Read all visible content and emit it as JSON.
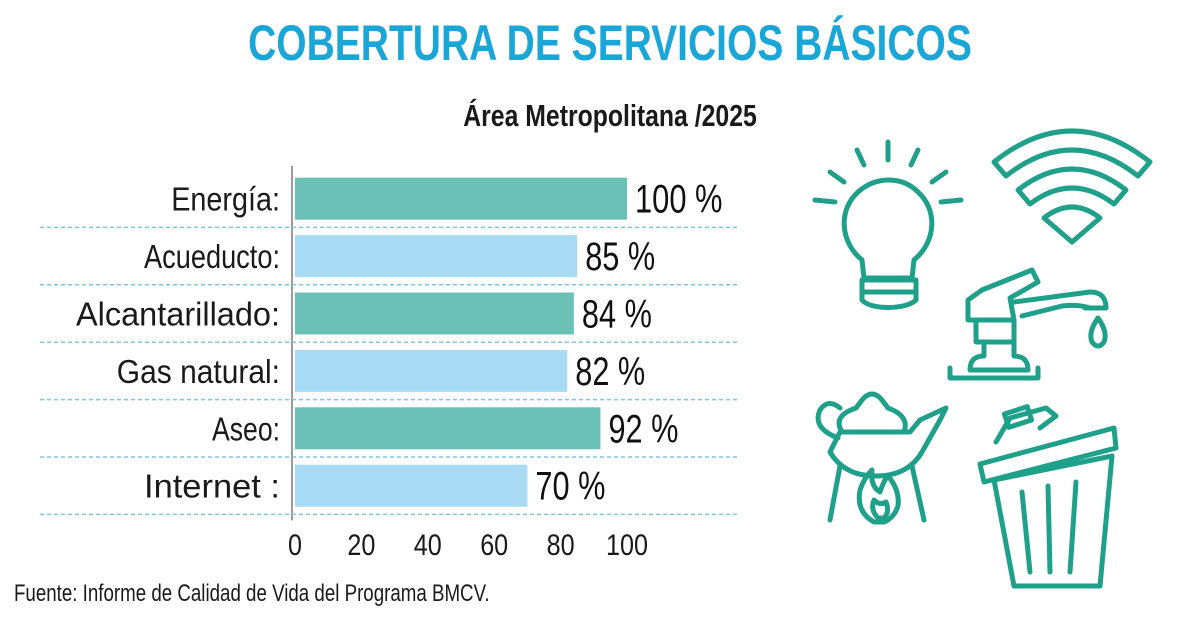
{
  "header": {
    "title": "COBERTURA DE SERVICIOS BÁSICOS",
    "subtitle": "Área Metropolitana /2025"
  },
  "footer": {
    "source": "Fuente: Informe de Calidad de Vida del  Programa BMCV."
  },
  "colors": {
    "title": "#1aa7d8",
    "bar_green": "#6cc1b7",
    "bar_blue": "#a8daf3",
    "icon_stroke": "#1ea08a",
    "divider": "#7fc7e6"
  },
  "chart_data": {
    "type": "bar",
    "orientation": "horizontal",
    "categories": [
      "Energía:",
      "Acueducto:",
      "Alcantarillado:",
      "Gas natural:",
      "Aseo:",
      "Internet :"
    ],
    "values": [
      100,
      85,
      84,
      82,
      92,
      70
    ],
    "value_labels": [
      "100 %",
      "85 %",
      "84 %",
      "82 %",
      "92 %",
      "70 %"
    ],
    "bar_colors": [
      "#6cc1b7",
      "#a8daf3",
      "#6cc1b7",
      "#a8daf3",
      "#6cc1b7",
      "#a8daf3"
    ],
    "xlim": [
      0,
      100
    ],
    "x_ticks": [
      "0",
      "20",
      "40",
      "60",
      "80",
      "100"
    ],
    "grid": false,
    "title": "COBERTURA DE SERVICIOS BÁSICOS",
    "xlabel": "",
    "ylabel": ""
  },
  "icons": [
    "light-bulb-icon",
    "wifi-icon",
    "faucet-icon",
    "kettle-on-fire-icon",
    "trash-bin-icon"
  ]
}
